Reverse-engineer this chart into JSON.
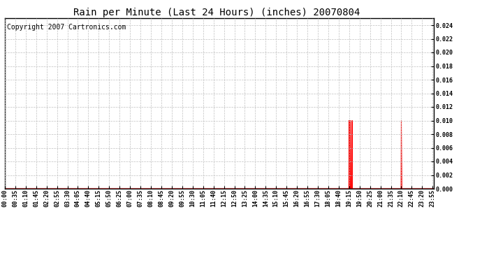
{
  "title": "Rain per Minute (Last 24 Hours) (inches) 20070804",
  "copyright_text": "Copyright 2007 Cartronics.com",
  "ylim": [
    0,
    0.025
  ],
  "yticks": [
    0.0,
    0.002,
    0.004,
    0.006,
    0.008,
    0.01,
    0.012,
    0.014,
    0.016,
    0.018,
    0.02,
    0.022,
    0.024
  ],
  "line_color": "#FF0000",
  "background_color": "#FFFFFF",
  "plot_bg_color": "#FFFFFF",
  "grid_color": "#C0C0C0",
  "border_color": "#000000",
  "spikes": [
    {
      "minute": 1155,
      "value": 0.01
    },
    {
      "minute": 1157,
      "value": 0.01
    },
    {
      "minute": 1159,
      "value": 0.01
    },
    {
      "minute": 1160,
      "value": 0.005
    },
    {
      "minute": 1165,
      "value": 0.01
    },
    {
      "minute": 1330,
      "value": 0.01
    },
    {
      "minute": 1331,
      "value": 0.005
    }
  ],
  "total_minutes": 1440,
  "x_tick_interval": 35,
  "title_fontsize": 10,
  "tick_fontsize": 6,
  "copyright_fontsize": 7
}
